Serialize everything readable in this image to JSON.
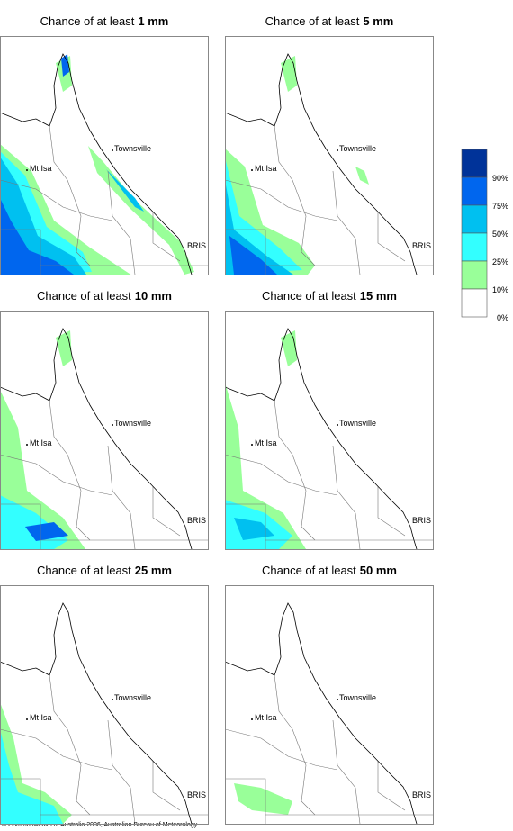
{
  "panels": [
    {
      "title": "Chance of at least",
      "amount": "1 mm"
    },
    {
      "title": "Chance of at least",
      "amount": "5 mm"
    },
    {
      "title": "Chance of at least",
      "amount": "10 mm"
    },
    {
      "title": "Chance of at least",
      "amount": "15 mm"
    },
    {
      "title": "Chance of at least",
      "amount": "25 mm"
    },
    {
      "title": "Chance of at least",
      "amount": "50 mm"
    }
  ],
  "place_labels": [
    "Townsville",
    "Mt Isa",
    "BRIS"
  ],
  "legend": {
    "labels": [
      "90%",
      "75%",
      "50%",
      "25%",
      "10%",
      "0%"
    ]
  },
  "footer": "© Commonwealth of Australia 2006, Australian Bureau of Meteorology"
}
